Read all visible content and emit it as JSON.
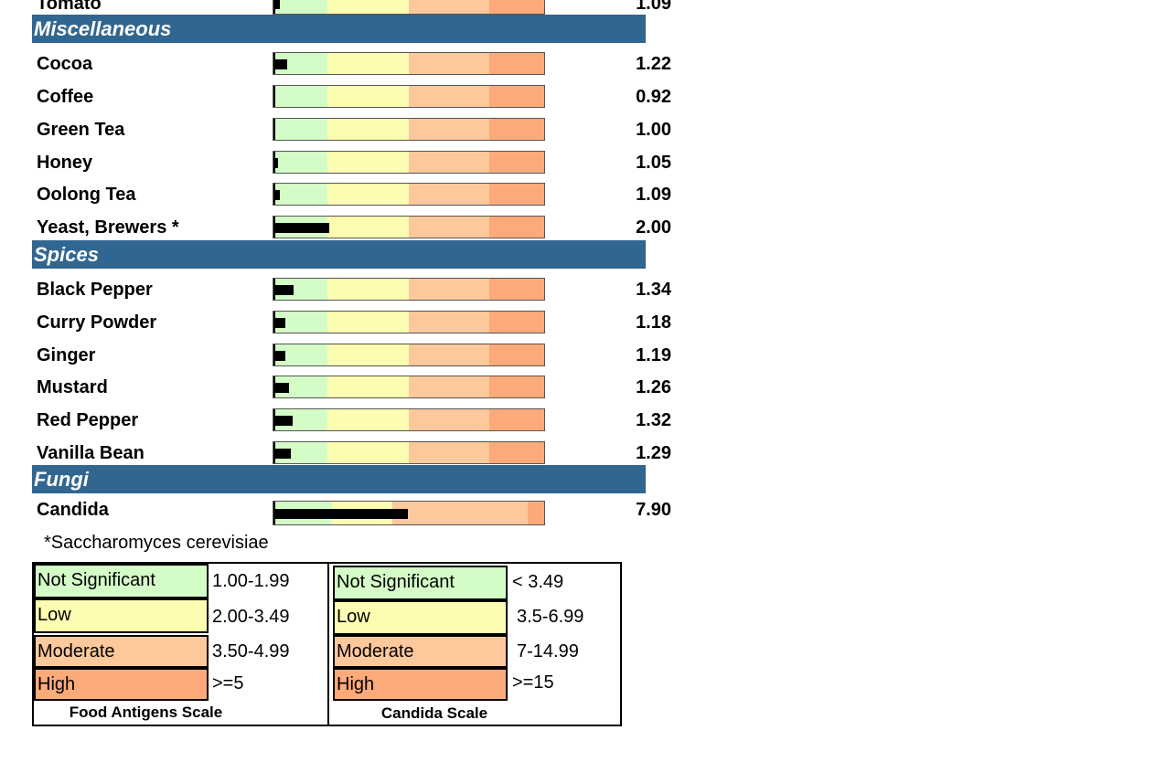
{
  "top_row": {
    "label": "Tomato",
    "value": "1.09",
    "level": 1.09
  },
  "sections": [
    {
      "title": "Miscellaneous",
      "items": [
        {
          "label": "Cocoa",
          "value": "1.22",
          "level": 1.22
        },
        {
          "label": "Coffee",
          "value": "0.92",
          "level": 0.92
        },
        {
          "label": "Green Tea",
          "value": "1.00",
          "level": 1.0
        },
        {
          "label": "Honey",
          "value": "1.05",
          "level": 1.05
        },
        {
          "label": "Oolong Tea",
          "value": "1.09",
          "level": 1.09
        },
        {
          "label": "Yeast, Brewers *",
          "value": "2.00",
          "level": 2.0
        }
      ]
    },
    {
      "title": "Spices",
      "items": [
        {
          "label": "Black Pepper",
          "value": "1.34",
          "level": 1.34
        },
        {
          "label": "Curry Powder",
          "value": "1.18",
          "level": 1.18
        },
        {
          "label": "Ginger",
          "value": "1.19",
          "level": 1.19
        },
        {
          "label": "Mustard",
          "value": "1.26",
          "level": 1.26
        },
        {
          "label": "Red Pepper",
          "value": "1.32",
          "level": 1.32
        },
        {
          "label": "Vanilla Bean",
          "value": "1.29",
          "level": 1.29
        }
      ]
    },
    {
      "title": "Fungi",
      "items": [
        {
          "label": "Candida",
          "value": "7.90",
          "level": 7.9
        }
      ]
    }
  ],
  "footnote": "*Saccharomyces cerevisiae",
  "food_scale": {
    "title": "Food Antigens Scale",
    "items": [
      {
        "label": "Not Significant",
        "range": "1.00-1.99",
        "color": "#d4fcc7"
      },
      {
        "label": "Low",
        "range": "2.00-3.49",
        "color": "#fdfdb1"
      },
      {
        "label": "Moderate",
        "range": "3.50-4.99",
        "color": "#fdc89b"
      },
      {
        "label": "High",
        "range": ">=5",
        "color": "#fdaa7a"
      }
    ]
  },
  "candida_scale": {
    "title": "Candida Scale",
    "items": [
      {
        "label": "Not Significant",
        "range": "< 3.49",
        "color": "#d4fcc7"
      },
      {
        "label": "Low",
        "range": "3.5-6.99",
        "color": "#fdfdb1"
      },
      {
        "label": "Moderate",
        "range": "7-14.99",
        "color": "#fdc89b"
      },
      {
        "label": "High",
        "range": ">=15",
        "color": "#fdaa7a"
      }
    ]
  },
  "colors": {
    "section_header": "#316690",
    "bar_fill": "#000000"
  }
}
